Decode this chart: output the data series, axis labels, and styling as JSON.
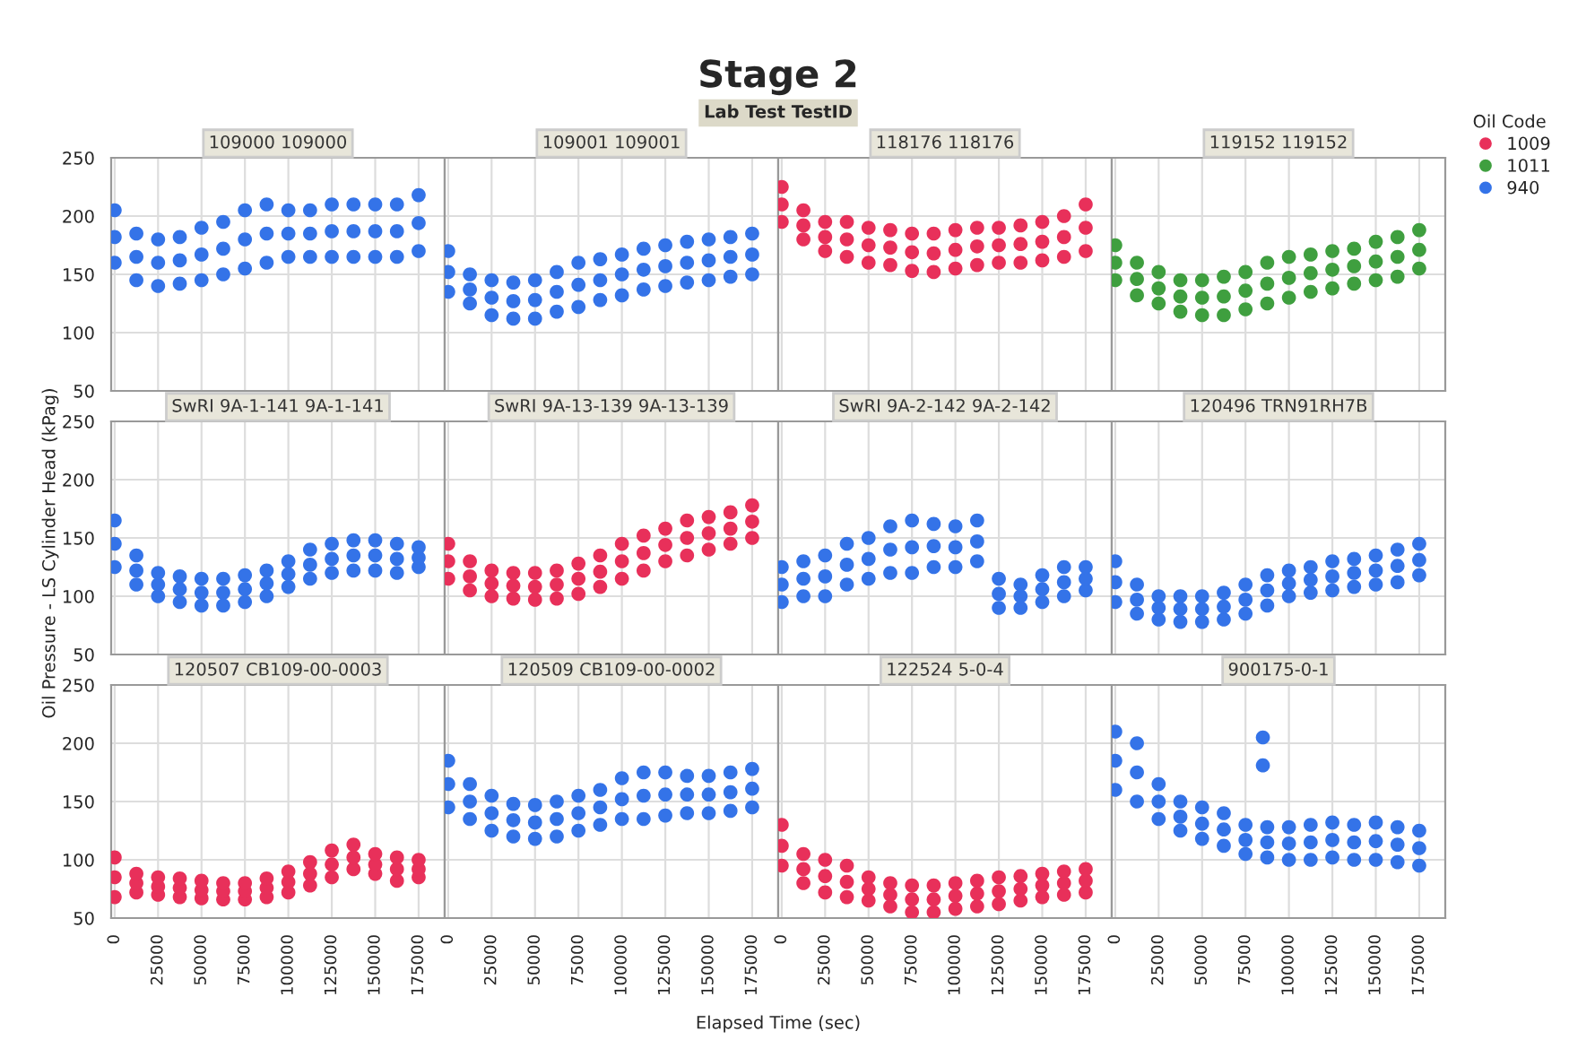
{
  "chart_data": [
    {
      "type": "other",
      "title": "Stage 2",
      "subtitle": "Lab Test TestID",
      "xlabel": "Elapsed Time (sec)",
      "ylabel": "Oil Pressure - LS Cylinder Head (kPag)"
    },
    {
      "type": "scatter",
      "legend_title": "Oil Code",
      "legend": "right",
      "title": "109000 109000",
      "xlim": [
        -2000,
        190000
      ],
      "ylim": [
        50,
        250
      ],
      "xticks": [
        0,
        25000,
        50000,
        75000,
        100000,
        125000,
        150000,
        175000
      ],
      "yticks": [
        50,
        100,
        150,
        200,
        250
      ],
      "grid": true,
      "marker": "circle",
      "tick_labels": "y",
      "series": [
        {
          "name": "940",
          "color": "#3473e8",
          "x": [
            0,
            12500,
            25000,
            37500,
            50000,
            62500,
            75000,
            87500,
            100000,
            112500,
            125000,
            137500,
            150000,
            162500,
            175000,
            0,
            12500,
            25000,
            37500,
            50000,
            62500,
            75000,
            87500,
            100000,
            112500,
            125000,
            137500,
            150000,
            162500,
            175000,
            0,
            12500,
            25000,
            37500,
            50000,
            62500,
            75000,
            87500,
            100000,
            112500,
            125000,
            137500,
            150000,
            162500,
            175000
          ],
          "values": [
            160,
            145,
            140,
            142,
            145,
            150,
            155,
            160,
            165,
            165,
            165,
            165,
            165,
            165,
            170,
            182,
            165,
            160,
            162,
            167,
            172,
            180,
            185,
            185,
            185,
            187,
            187,
            187,
            187,
            194,
            205,
            185,
            180,
            182,
            190,
            195,
            205,
            210,
            205,
            205,
            210,
            210,
            210,
            210,
            218
          ]
        }
      ]
    },
    {
      "type": "scatter",
      "title": "109001 109001",
      "xlim": [
        -2000,
        190000
      ],
      "ylim": [
        50,
        250
      ],
      "xticks": [
        0,
        25000,
        50000,
        75000,
        100000,
        125000,
        150000,
        175000
      ],
      "yticks": [
        50,
        100,
        150,
        200,
        250
      ],
      "grid": true,
      "marker": "circle",
      "tick_labels": false,
      "series": [
        {
          "name": "940",
          "color": "#3473e8",
          "x": [
            0,
            12500,
            25000,
            37500,
            50000,
            62500,
            75000,
            87500,
            100000,
            112500,
            125000,
            137500,
            150000,
            162500,
            175000,
            0,
            12500,
            25000,
            37500,
            50000,
            62500,
            75000,
            87500,
            100000,
            112500,
            125000,
            137500,
            150000,
            162500,
            175000,
            0,
            12500,
            25000,
            37500,
            50000,
            62500,
            75000,
            87500,
            100000,
            112500,
            125000,
            137500,
            150000,
            162500,
            175000
          ],
          "values": [
            135,
            125,
            115,
            112,
            112,
            118,
            122,
            128,
            132,
            137,
            140,
            143,
            145,
            148,
            150,
            152,
            137,
            130,
            127,
            128,
            135,
            141,
            145,
            150,
            154,
            157,
            160,
            162,
            165,
            167,
            170,
            150,
            145,
            143,
            145,
            152,
            160,
            163,
            167,
            172,
            175,
            178,
            180,
            182,
            185
          ]
        }
      ]
    },
    {
      "type": "scatter",
      "title": "118176 118176",
      "xlim": [
        -2000,
        190000
      ],
      "ylim": [
        50,
        250
      ],
      "xticks": [
        0,
        25000,
        50000,
        75000,
        100000,
        125000,
        150000,
        175000
      ],
      "yticks": [
        50,
        100,
        150,
        200,
        250
      ],
      "grid": true,
      "marker": "circle",
      "tick_labels": false,
      "series": [
        {
          "name": "1009",
          "color": "#e8305a",
          "x": [
            0,
            12500,
            25000,
            37500,
            50000,
            62500,
            75000,
            87500,
            100000,
            112500,
            125000,
            137500,
            150000,
            162500,
            175000,
            0,
            12500,
            25000,
            37500,
            50000,
            62500,
            75000,
            87500,
            100000,
            112500,
            125000,
            137500,
            150000,
            162500,
            175000,
            0,
            12500,
            25000,
            37500,
            50000,
            62500,
            75000,
            87500,
            100000,
            112500,
            125000,
            137500,
            150000,
            162500,
            175000
          ],
          "values": [
            195,
            180,
            170,
            165,
            160,
            158,
            153,
            152,
            155,
            158,
            160,
            160,
            162,
            165,
            170,
            210,
            192,
            182,
            180,
            175,
            173,
            169,
            168,
            171,
            174,
            175,
            176,
            178,
            182,
            190,
            225,
            205,
            195,
            195,
            190,
            188,
            185,
            185,
            188,
            190,
            190,
            192,
            195,
            200,
            210
          ]
        }
      ]
    },
    {
      "type": "scatter",
      "title": "119152 119152",
      "xlim": [
        -2000,
        190000
      ],
      "ylim": [
        50,
        250
      ],
      "xticks": [
        0,
        25000,
        50000,
        75000,
        100000,
        125000,
        150000,
        175000
      ],
      "yticks": [
        50,
        100,
        150,
        200,
        250
      ],
      "grid": true,
      "marker": "circle",
      "tick_labels": false,
      "series": [
        {
          "name": "1011",
          "color": "#3f9f3f",
          "x": [
            0,
            12500,
            25000,
            37500,
            50000,
            62500,
            75000,
            87500,
            100000,
            112500,
            125000,
            137500,
            150000,
            162500,
            175000,
            0,
            12500,
            25000,
            37500,
            50000,
            62500,
            75000,
            87500,
            100000,
            112500,
            125000,
            137500,
            150000,
            162500,
            175000,
            0,
            12500,
            25000,
            37500,
            50000,
            62500,
            75000,
            87500,
            100000,
            112500,
            125000,
            137500,
            150000,
            162500,
            175000
          ],
          "values": [
            145,
            132,
            125,
            118,
            115,
            115,
            120,
            125,
            130,
            135,
            138,
            142,
            145,
            148,
            155,
            160,
            146,
            138,
            131,
            130,
            131,
            136,
            142,
            147,
            151,
            154,
            157,
            161,
            165,
            171,
            175,
            160,
            152,
            145,
            145,
            148,
            152,
            160,
            165,
            167,
            170,
            172,
            178,
            182,
            188
          ]
        }
      ]
    },
    {
      "type": "scatter",
      "title": "SwRI 9A-1-141 9A-1-141",
      "xlim": [
        -2000,
        190000
      ],
      "ylim": [
        50,
        250
      ],
      "xticks": [
        0,
        25000,
        50000,
        75000,
        100000,
        125000,
        150000,
        175000
      ],
      "yticks": [
        50,
        100,
        150,
        200,
        250
      ],
      "grid": true,
      "marker": "circle",
      "tick_labels": "y",
      "series": [
        {
          "name": "940",
          "color": "#3473e8",
          "x": [
            0,
            12500,
            25000,
            37500,
            50000,
            62500,
            75000,
            87500,
            100000,
            112500,
            125000,
            137500,
            150000,
            162500,
            175000,
            0,
            12500,
            25000,
            37500,
            50000,
            62500,
            75000,
            87500,
            100000,
            112500,
            125000,
            137500,
            150000,
            162500,
            175000,
            0,
            12500,
            25000,
            37500,
            50000,
            62500,
            75000,
            87500,
            100000,
            112500,
            125000,
            137500,
            150000,
            162500,
            175000
          ],
          "values": [
            125,
            110,
            100,
            95,
            92,
            92,
            95,
            100,
            108,
            115,
            120,
            122,
            122,
            120,
            125,
            145,
            122,
            110,
            106,
            103,
            103,
            106,
            111,
            119,
            127,
            132,
            135,
            135,
            132,
            133,
            165,
            135,
            120,
            117,
            115,
            115,
            118,
            122,
            130,
            140,
            145,
            148,
            148,
            145,
            142
          ]
        }
      ]
    },
    {
      "type": "scatter",
      "title": "SwRI 9A-13-139 9A-13-139",
      "xlim": [
        -2000,
        190000
      ],
      "ylim": [
        50,
        250
      ],
      "xticks": [
        0,
        25000,
        50000,
        75000,
        100000,
        125000,
        150000,
        175000
      ],
      "yticks": [
        50,
        100,
        150,
        200,
        250
      ],
      "grid": true,
      "marker": "circle",
      "tick_labels": false,
      "series": [
        {
          "name": "1009",
          "color": "#e8305a",
          "x": [
            0,
            12500,
            25000,
            37500,
            50000,
            62500,
            75000,
            87500,
            100000,
            112500,
            125000,
            137500,
            150000,
            162500,
            175000,
            0,
            12500,
            25000,
            37500,
            50000,
            62500,
            75000,
            87500,
            100000,
            112500,
            125000,
            137500,
            150000,
            162500,
            175000,
            0,
            12500,
            25000,
            37500,
            50000,
            62500,
            75000,
            87500,
            100000,
            112500,
            125000,
            137500,
            150000,
            162500,
            175000
          ],
          "values": [
            115,
            105,
            100,
            98,
            97,
            98,
            102,
            108,
            115,
            122,
            130,
            135,
            140,
            145,
            150,
            130,
            117,
            111,
            109,
            108,
            110,
            115,
            121,
            130,
            137,
            144,
            150,
            154,
            158,
            164,
            145,
            130,
            122,
            120,
            120,
            122,
            128,
            135,
            145,
            152,
            158,
            165,
            168,
            172,
            178
          ]
        }
      ]
    },
    {
      "type": "scatter",
      "title": "SwRI 9A-2-142 9A-2-142",
      "xlim": [
        -2000,
        190000
      ],
      "ylim": [
        50,
        250
      ],
      "xticks": [
        0,
        25000,
        50000,
        75000,
        100000,
        125000,
        150000,
        175000
      ],
      "yticks": [
        50,
        100,
        150,
        200,
        250
      ],
      "grid": true,
      "marker": "circle",
      "tick_labels": false,
      "series": [
        {
          "name": "940",
          "color": "#3473e8",
          "x": [
            0,
            12500,
            25000,
            37500,
            50000,
            62500,
            75000,
            87500,
            100000,
            112500,
            125000,
            137500,
            150000,
            162500,
            175000,
            0,
            12500,
            25000,
            37500,
            50000,
            62500,
            75000,
            87500,
            100000,
            112500,
            125000,
            137500,
            150000,
            162500,
            175000,
            0,
            12500,
            25000,
            37500,
            50000,
            62500,
            75000,
            87500,
            100000,
            112500,
            125000,
            137500,
            150000,
            162500,
            175000
          ],
          "values": [
            95,
            100,
            100,
            110,
            115,
            120,
            120,
            125,
            125,
            130,
            90,
            90,
            95,
            100,
            105,
            110,
            115,
            117,
            127,
            132,
            140,
            142,
            143,
            142,
            147,
            102,
            100,
            106,
            112,
            115,
            125,
            130,
            135,
            145,
            150,
            160,
            165,
            162,
            160,
            165,
            115,
            110,
            118,
            125,
            125
          ]
        }
      ]
    },
    {
      "type": "scatter",
      "title": "120496 TRN91RH7B",
      "xlim": [
        -2000,
        190000
      ],
      "ylim": [
        50,
        250
      ],
      "xticks": [
        0,
        25000,
        50000,
        75000,
        100000,
        125000,
        150000,
        175000
      ],
      "yticks": [
        50,
        100,
        150,
        200,
        250
      ],
      "grid": true,
      "marker": "circle",
      "tick_labels": false,
      "series": [
        {
          "name": "940",
          "color": "#3473e8",
          "x": [
            0,
            12500,
            25000,
            37500,
            50000,
            62500,
            75000,
            87500,
            100000,
            112500,
            125000,
            137500,
            150000,
            162500,
            175000,
            0,
            12500,
            25000,
            37500,
            50000,
            62500,
            75000,
            87500,
            100000,
            112500,
            125000,
            137500,
            150000,
            162500,
            175000,
            0,
            12500,
            25000,
            37500,
            50000,
            62500,
            75000,
            87500,
            100000,
            112500,
            125000,
            137500,
            150000,
            162500,
            175000
          ],
          "values": [
            95,
            85,
            80,
            78,
            78,
            80,
            85,
            92,
            100,
            103,
            105,
            108,
            110,
            112,
            118,
            112,
            97,
            90,
            89,
            89,
            91,
            97,
            105,
            111,
            114,
            117,
            120,
            122,
            126,
            131,
            130,
            110,
            100,
            100,
            100,
            103,
            110,
            118,
            122,
            125,
            130,
            132,
            135,
            140,
            145
          ]
        }
      ]
    },
    {
      "type": "scatter",
      "title": "120507 CB109-00-0003",
      "xlim": [
        -2000,
        190000
      ],
      "ylim": [
        50,
        250
      ],
      "xticks": [
        0,
        25000,
        50000,
        75000,
        100000,
        125000,
        150000,
        175000
      ],
      "yticks": [
        50,
        100,
        150,
        200,
        250
      ],
      "grid": true,
      "marker": "circle",
      "series": [
        {
          "name": "1009",
          "color": "#e8305a",
          "x": [
            0,
            12500,
            25000,
            37500,
            50000,
            62500,
            75000,
            87500,
            100000,
            112500,
            125000,
            137500,
            150000,
            162500,
            175000,
            0,
            12500,
            25000,
            37500,
            50000,
            62500,
            75000,
            87500,
            100000,
            112500,
            125000,
            137500,
            150000,
            162500,
            175000,
            0,
            12500,
            25000,
            37500,
            50000,
            62500,
            75000,
            87500,
            100000,
            112500,
            125000,
            137500,
            150000,
            162500,
            175000
          ],
          "values": [
            68,
            72,
            70,
            68,
            67,
            66,
            66,
            68,
            72,
            78,
            85,
            92,
            88,
            82,
            85,
            85,
            80,
            77,
            76,
            74,
            73,
            73,
            76,
            81,
            88,
            96,
            102,
            96,
            92,
            92,
            102,
            88,
            85,
            84,
            82,
            80,
            80,
            84,
            90,
            98,
            108,
            113,
            105,
            102,
            100
          ]
        }
      ]
    },
    {
      "type": "scatter",
      "title": "120509 CB109-00-0002",
      "xlim": [
        -2000,
        190000
      ],
      "ylim": [
        50,
        250
      ],
      "xticks": [
        0,
        25000,
        50000,
        75000,
        100000,
        125000,
        150000,
        175000
      ],
      "yticks": [
        50,
        100,
        150,
        200,
        250
      ],
      "grid": true,
      "marker": "circle",
      "tick_labels": "x",
      "series": [
        {
          "name": "940",
          "color": "#3473e8",
          "x": [
            0,
            12500,
            25000,
            37500,
            50000,
            62500,
            75000,
            87500,
            100000,
            112500,
            125000,
            137500,
            150000,
            162500,
            175000,
            0,
            12500,
            25000,
            37500,
            50000,
            62500,
            75000,
            87500,
            100000,
            112500,
            125000,
            137500,
            150000,
            162500,
            175000,
            0,
            12500,
            25000,
            37500,
            50000,
            62500,
            75000,
            87500,
            100000,
            112500,
            125000,
            137500,
            150000,
            162500,
            175000
          ],
          "values": [
            145,
            135,
            125,
            120,
            118,
            120,
            125,
            130,
            135,
            135,
            138,
            140,
            140,
            142,
            145,
            165,
            150,
            140,
            134,
            132,
            135,
            140,
            145,
            152,
            155,
            156,
            156,
            156,
            158,
            161,
            185,
            165,
            155,
            148,
            147,
            150,
            155,
            160,
            170,
            175,
            175,
            172,
            172,
            175,
            178
          ]
        }
      ]
    },
    {
      "type": "scatter",
      "title": "122524 5-0-4",
      "xlim": [
        -2000,
        190000
      ],
      "ylim": [
        50,
        250
      ],
      "xticks": [
        0,
        25000,
        50000,
        75000,
        100000,
        125000,
        150000,
        175000
      ],
      "yticks": [
        50,
        100,
        150,
        200,
        250
      ],
      "grid": true,
      "marker": "circle",
      "tick_labels": "x",
      "series": [
        {
          "name": "1009",
          "color": "#e8305a",
          "x": [
            0,
            12500,
            25000,
            37500,
            50000,
            62500,
            75000,
            87500,
            100000,
            112500,
            125000,
            137500,
            150000,
            162500,
            175000,
            0,
            12500,
            25000,
            37500,
            50000,
            62500,
            75000,
            87500,
            100000,
            112500,
            125000,
            137500,
            150000,
            162500,
            175000,
            0,
            12500,
            25000,
            37500,
            50000,
            62500,
            75000,
            87500,
            100000,
            112500,
            125000,
            137500,
            150000,
            162500,
            175000
          ],
          "values": [
            95,
            80,
            72,
            68,
            65,
            60,
            55,
            55,
            58,
            60,
            62,
            65,
            68,
            70,
            72,
            112,
            92,
            86,
            81,
            75,
            70,
            66,
            66,
            69,
            71,
            73,
            75,
            78,
            80,
            82,
            130,
            105,
            100,
            95,
            85,
            80,
            78,
            78,
            80,
            82,
            85,
            86,
            88,
            90,
            92
          ]
        }
      ]
    },
    {
      "type": "scatter",
      "title": "900175-0-1",
      "xlim": [
        -2000,
        190000
      ],
      "ylim": [
        50,
        250
      ],
      "xticks": [
        0,
        25000,
        50000,
        75000,
        100000,
        125000,
        150000,
        175000
      ],
      "yticks": [
        50,
        100,
        150,
        200,
        250
      ],
      "grid": true,
      "marker": "circle",
      "tick_labels": "x",
      "series": [
        {
          "name": "940",
          "color": "#3473e8",
          "x": [
            0,
            12500,
            25000,
            37500,
            50000,
            62500,
            75000,
            87500,
            100000,
            112500,
            125000,
            137500,
            150000,
            162500,
            175000,
            0,
            12500,
            25000,
            37500,
            50000,
            62500,
            75000,
            87500,
            100000,
            112500,
            125000,
            137500,
            150000,
            162500,
            175000,
            0,
            12500,
            25000,
            37500,
            50000,
            62500,
            75000,
            87500,
            100000,
            112500,
            125000,
            137500,
            150000,
            162500,
            175000,
            85000,
            85000
          ],
          "values": [
            160,
            150,
            135,
            125,
            118,
            112,
            105,
            102,
            100,
            100,
            102,
            100,
            100,
            98,
            95,
            185,
            175,
            150,
            137,
            131,
            126,
            117,
            115,
            114,
            115,
            117,
            115,
            116,
            113,
            110,
            210,
            200,
            165,
            150,
            145,
            140,
            130,
            128,
            128,
            130,
            132,
            130,
            132,
            128,
            125,
            205,
            181
          ]
        }
      ]
    }
  ]
}
